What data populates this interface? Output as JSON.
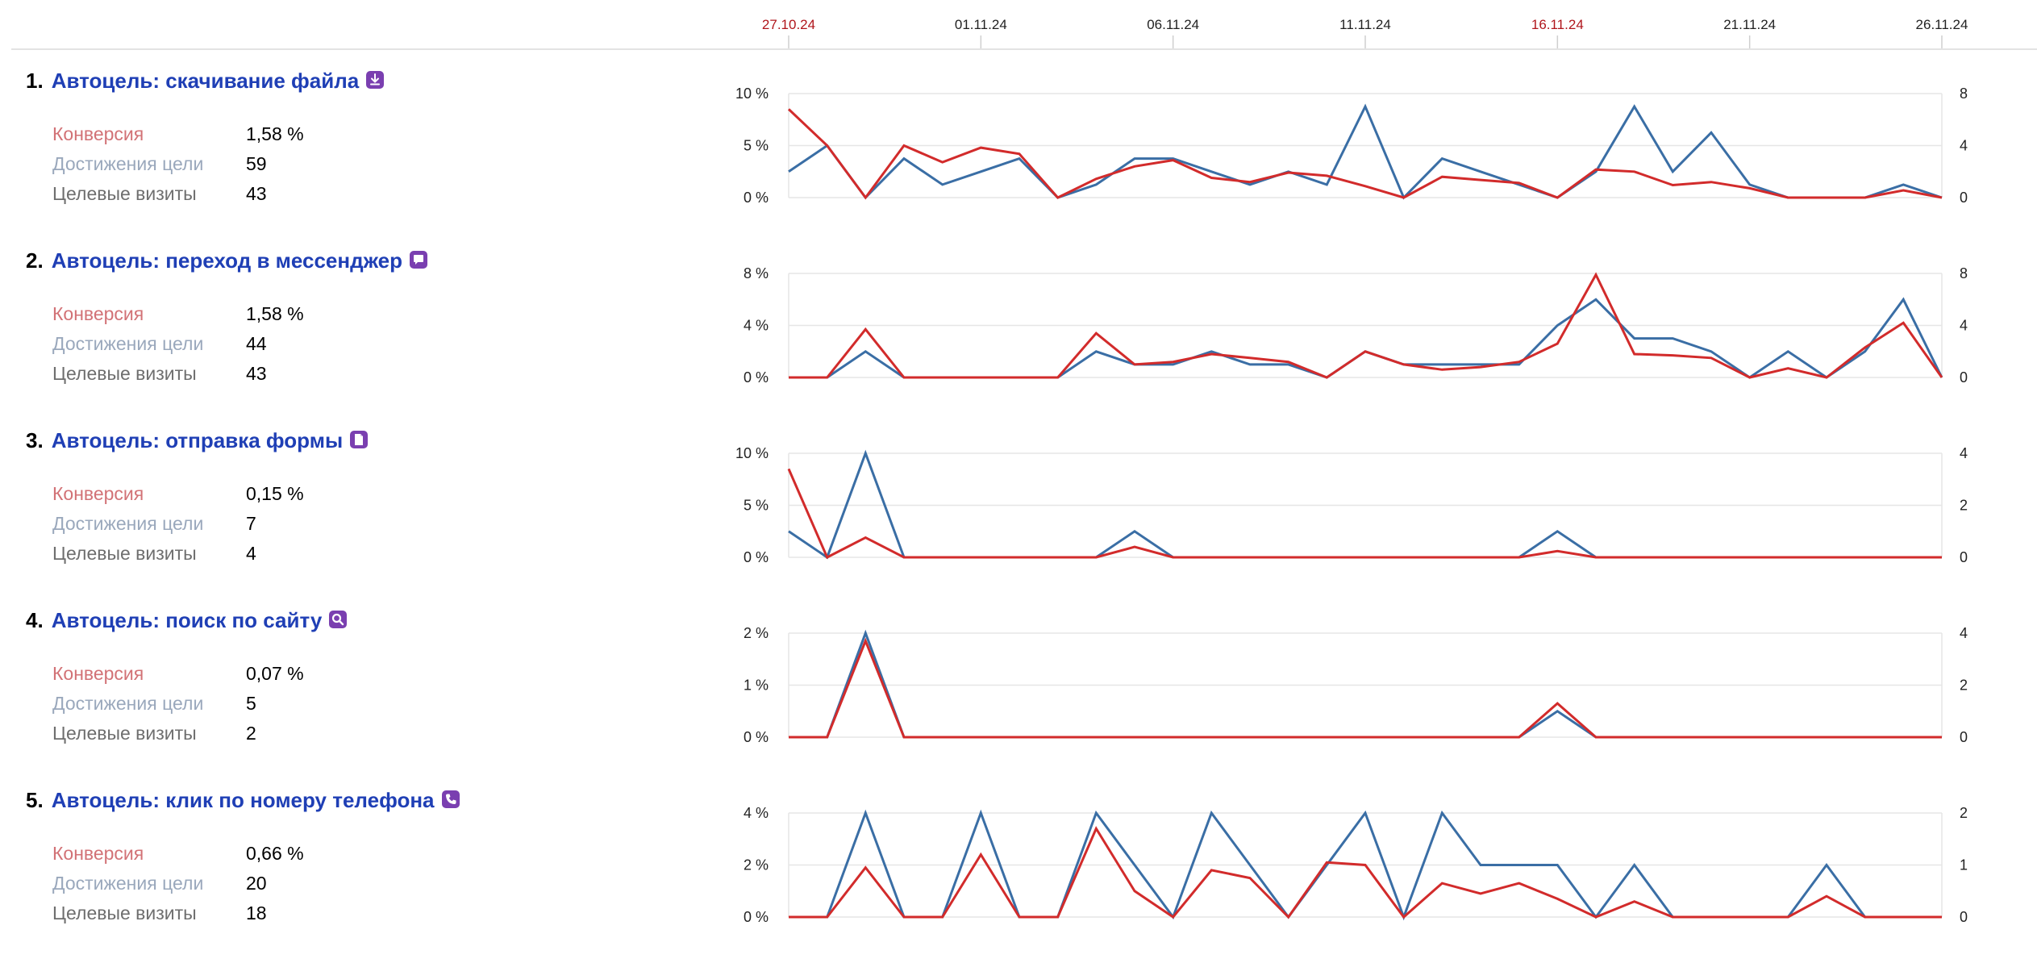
{
  "dates": {
    "labels": [
      {
        "text": "27.10.24",
        "index": 0,
        "holiday": true
      },
      {
        "text": "01.11.24",
        "index": 5,
        "holiday": false
      },
      {
        "text": "06.11.24",
        "index": 10,
        "holiday": false
      },
      {
        "text": "11.11.24",
        "index": 15,
        "holiday": false
      },
      {
        "text": "16.11.24",
        "index": 20,
        "holiday": true
      },
      {
        "text": "21.11.24",
        "index": 25,
        "holiday": false
      },
      {
        "text": "26.11.24",
        "index": 30,
        "holiday": false
      }
    ],
    "count": 31
  },
  "colors": {
    "conversion_line": "#d22b2b",
    "visits_line": "#3a6ea5",
    "grid": "#e6e6e6",
    "holiday_text": "#b0161c",
    "title_link": "#1f3fb5",
    "icon_bg": "#7a3fb0"
  },
  "labels": {
    "conversion": "Конверсия",
    "reaches": "Достижения цели",
    "visits": "Целевые визиты"
  },
  "goals": [
    {
      "number": "1.",
      "name": "Автоцель: скачивание файла",
      "icon": "download-icon",
      "conversion": "1,58 %",
      "reaches": "59",
      "visits": "43"
    },
    {
      "number": "2.",
      "name": "Автоцель: переход в мессенджер",
      "icon": "chat-bubble-icon",
      "conversion": "1,58 %",
      "reaches": "44",
      "visits": "43"
    },
    {
      "number": "3.",
      "name": "Автоцель: отправка формы",
      "icon": "form-document-icon",
      "conversion": "0,15 %",
      "reaches": "7",
      "visits": "4"
    },
    {
      "number": "4.",
      "name": "Автоцель: поиск по сайту",
      "icon": "search-icon",
      "conversion": "0,07 %",
      "reaches": "5",
      "visits": "2"
    },
    {
      "number": "5.",
      "name": "Автоцель: клик по номеру телефона",
      "icon": "phone-icon",
      "conversion": "0,66 %",
      "reaches": "20",
      "visits": "18"
    }
  ],
  "chart_data": [
    {
      "type": "line",
      "left_ticks": [
        "0 %",
        "5 %",
        "10 %"
      ],
      "right_ticks": [
        "0",
        "4",
        "8"
      ],
      "y_left_lim": [
        0,
        10
      ],
      "y_right_lim": [
        0,
        8
      ],
      "series": [
        {
          "axis": "left",
          "values": [
            8.5,
            5,
            0,
            5,
            3.4,
            4.8,
            4.2,
            0,
            1.8,
            3,
            3.6,
            1.9,
            1.5,
            2.4,
            2.1,
            1.1,
            0,
            2,
            1.7,
            1.4,
            0,
            2.7,
            2.5,
            1.2,
            1.5,
            0.9,
            0,
            0,
            0,
            0.7,
            0
          ]
        },
        {
          "axis": "right",
          "values": [
            2,
            4,
            0,
            3,
            1,
            2,
            3,
            0,
            1,
            3,
            3,
            2,
            1,
            2,
            1,
            7,
            0,
            3,
            2,
            1,
            0,
            2,
            7,
            2,
            5,
            1,
            0,
            0,
            0,
            1,
            0
          ]
        }
      ]
    },
    {
      "type": "line",
      "left_ticks": [
        "0 %",
        "4 %",
        "8 %"
      ],
      "right_ticks": [
        "0",
        "4",
        "8"
      ],
      "y_left_lim": [
        0,
        8
      ],
      "y_right_lim": [
        0,
        8
      ],
      "series": [
        {
          "axis": "left",
          "values": [
            0,
            0,
            3.7,
            0,
            0,
            0,
            0,
            0,
            3.4,
            1,
            1.2,
            1.8,
            1.5,
            1.2,
            0,
            2,
            1,
            0.6,
            0.8,
            1.2,
            2.6,
            7.9,
            1.8,
            1.7,
            1.5,
            0,
            0.7,
            0,
            2.3,
            4.2,
            0
          ]
        },
        {
          "axis": "right",
          "values": [
            0,
            0,
            2,
            0,
            0,
            0,
            0,
            0,
            2,
            1,
            1,
            2,
            1,
            1,
            0,
            2,
            1,
            1,
            1,
            1,
            4,
            6,
            3,
            3,
            2,
            0,
            2,
            0,
            2,
            6,
            0
          ]
        }
      ]
    },
    {
      "type": "line",
      "left_ticks": [
        "0 %",
        "5 %",
        "10 %"
      ],
      "right_ticks": [
        "0",
        "2",
        "4"
      ],
      "y_left_lim": [
        0,
        10
      ],
      "y_right_lim": [
        0,
        4
      ],
      "series": [
        {
          "axis": "left",
          "values": [
            8.5,
            0,
            1.9,
            0,
            0,
            0,
            0,
            0,
            0,
            1,
            0,
            0,
            0,
            0,
            0,
            0,
            0,
            0,
            0,
            0,
            0.6,
            0,
            0,
            0,
            0,
            0,
            0,
            0,
            0,
            0,
            0
          ]
        },
        {
          "axis": "right",
          "values": [
            1,
            0,
            4,
            0,
            0,
            0,
            0,
            0,
            0,
            1,
            0,
            0,
            0,
            0,
            0,
            0,
            0,
            0,
            0,
            0,
            1,
            0,
            0,
            0,
            0,
            0,
            0,
            0,
            0,
            0,
            0
          ]
        }
      ]
    },
    {
      "type": "line",
      "left_ticks": [
        "0 %",
        "1 %",
        "2 %"
      ],
      "right_ticks": [
        "0",
        "2",
        "4"
      ],
      "y_left_lim": [
        0,
        2
      ],
      "y_right_lim": [
        0,
        4
      ],
      "series": [
        {
          "axis": "left",
          "values": [
            0,
            0,
            1.85,
            0,
            0,
            0,
            0,
            0,
            0,
            0,
            0,
            0,
            0,
            0,
            0,
            0,
            0,
            0,
            0,
            0,
            0.65,
            0,
            0,
            0,
            0,
            0,
            0,
            0,
            0,
            0,
            0
          ]
        },
        {
          "axis": "right",
          "values": [
            0,
            0,
            4,
            0,
            0,
            0,
            0,
            0,
            0,
            0,
            0,
            0,
            0,
            0,
            0,
            0,
            0,
            0,
            0,
            0,
            1,
            0,
            0,
            0,
            0,
            0,
            0,
            0,
            0,
            0,
            0
          ]
        }
      ]
    },
    {
      "type": "line",
      "left_ticks": [
        "0 %",
        "2 %",
        "4 %"
      ],
      "right_ticks": [
        "0",
        "1",
        "2"
      ],
      "y_left_lim": [
        0,
        4
      ],
      "y_right_lim": [
        0,
        2
      ],
      "series": [
        {
          "axis": "left",
          "values": [
            0,
            0,
            1.9,
            0,
            0,
            2.4,
            0,
            0,
            3.4,
            1,
            0,
            1.8,
            1.5,
            0,
            2.1,
            2,
            0,
            1.3,
            0.9,
            1.3,
            0.7,
            0,
            0.6,
            0,
            0,
            0,
            0,
            0.8,
            0,
            0,
            0
          ]
        },
        {
          "axis": "right",
          "values": [
            0,
            0,
            2,
            0,
            0,
            2,
            0,
            0,
            2,
            1,
            0,
            2,
            1,
            0,
            1,
            2,
            0,
            2,
            1,
            1,
            1,
            0,
            1,
            0,
            0,
            0,
            0,
            1,
            0,
            0,
            0
          ]
        }
      ]
    }
  ]
}
